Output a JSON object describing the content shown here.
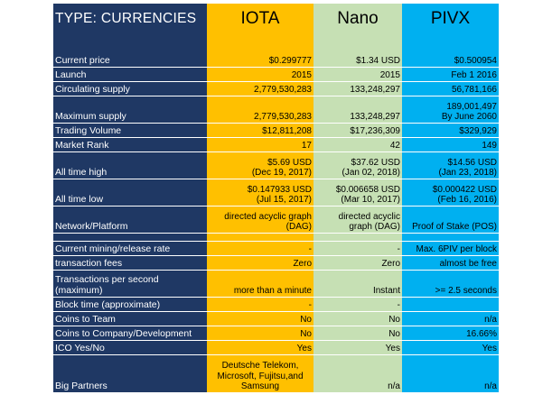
{
  "header": {
    "type_label": "TYPE:  CURRENCIES",
    "columns": [
      "IOTA",
      "Nano",
      "PIVX"
    ]
  },
  "colors": {
    "label_bg": "#1f3864",
    "iota": "#ffc000",
    "nano": "#c6e0b4",
    "pivx": "#00b0f0"
  },
  "rows": [
    {
      "label": "Current price",
      "iota": "$0.299777",
      "nano": "$1.34 USD",
      "pivx": "$0.500954"
    },
    {
      "label": "Launch",
      "iota": "2015",
      "nano": "2015",
      "pivx": "Feb 1 2016"
    },
    {
      "label": "Circulating supply",
      "iota": "2,779,530,283",
      "nano": "133,248,297",
      "pivx": "56,781,166"
    },
    {
      "label": "Maximum supply",
      "iota": "2,779,530,283",
      "nano": "133,248,297",
      "pivx": "189,001,497\nBy June 2060"
    },
    {
      "label": "Trading Volume",
      "iota": "$12,811,208",
      "nano": "$17,236,309",
      "pivx": "$329,929"
    },
    {
      "label": "Market Rank",
      "iota": "17",
      "nano": "42",
      "pivx": "149"
    },
    {
      "label": "All time high",
      "iota": "$5.69 USD\n(Dec 19, 2017)",
      "nano": "$37.62 USD\n(Jan 02, 2018)",
      "pivx": "$14.56 USD\n(Jan 23, 2018)"
    },
    {
      "label": "All time low",
      "iota": "$0.147933 USD\n(Jul 15, 2017)",
      "nano": "$0.006658 USD\n(Mar 10, 2017)",
      "pivx": "$0.000422 USD\n(Feb 16, 2016)"
    },
    {
      "label": "Network/Platform",
      "iota": "directed acyclic graph\n(DAG)",
      "nano": "directed acyclic\ngraph (DAG)",
      "pivx": "Proof of Stake (POS)"
    },
    {
      "label": "",
      "iota": "",
      "nano": "",
      "pivx": ""
    },
    {
      "label": "Current mining/release rate",
      "iota": "-",
      "nano": "-",
      "pivx": "Max. 6PIV per block"
    },
    {
      "label": "transaction fees",
      "iota": "Zero",
      "nano": "Zero",
      "pivx": "almost be free"
    },
    {
      "label": "Transactions per second\n(maximum)",
      "iota": "more than a minute",
      "nano": "Instant",
      "pivx": ">= 2.5 seconds"
    },
    {
      "label": "Block time (approximate)",
      "iota": "-",
      "nano": "-",
      "pivx": ""
    },
    {
      "label": "Coins to Team",
      "iota": "No",
      "nano": "No",
      "pivx": "n/a"
    },
    {
      "label": "Coins to Company/Development",
      "iota": "No",
      "nano": "No",
      "pivx": "16.66%"
    },
    {
      "label": "ICO Yes/No",
      "iota": "Yes",
      "nano": "Yes",
      "pivx": "Yes"
    },
    {
      "label": "Big Partners",
      "iota": "Deutsche Telekom,\nMicrosoft, Fujitsu,and\nSamsung",
      "nano": "n/a",
      "pivx": "n/a"
    }
  ]
}
